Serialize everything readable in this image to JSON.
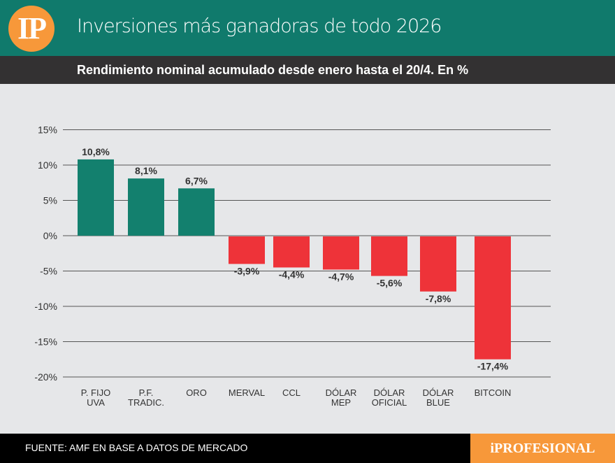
{
  "header": {
    "logo": "IP",
    "title": "Inversiones más ganadoras de todo 2026",
    "subtitle": "Rendimiento nominal acumulado desde enero hasta el 20/4. En %"
  },
  "footer": {
    "source": "FUENTE: AMF EN BASE A DATOS DE MERCADO",
    "brand": "iPROFESIONAL"
  },
  "colors": {
    "positive": "#13806e",
    "negative": "#ee3339"
  },
  "chart_data": {
    "type": "bar",
    "title": "Inversiones más ganadoras de todo 2026",
    "categories": [
      [
        "P. FIJO",
        "UVA"
      ],
      [
        "P.F.",
        "TRADIC."
      ],
      [
        "ORO"
      ],
      [
        "MERVAL"
      ],
      [
        "CCL"
      ],
      [
        "DÓLAR",
        "MEP"
      ],
      [
        "DÓLAR",
        "OFICIAL"
      ],
      [
        "DÓLAR",
        "BLUE"
      ],
      [
        "BITCOIN"
      ]
    ],
    "values": [
      10.8,
      8.1,
      6.7,
      -3.9,
      -4.4,
      -4.7,
      -5.6,
      -7.8,
      -17.4
    ],
    "data_labels": [
      "10,8%",
      "8,1%",
      "6,7%",
      "-3,9%",
      "-4,4%",
      "-4,7%",
      "-5,6%",
      "-7,8%",
      "-17,4%"
    ],
    "ylim": [
      -20,
      15
    ],
    "yticks": [
      15,
      10,
      5,
      0,
      -5,
      -10,
      -15,
      -20
    ],
    "ytick_labels": [
      "15%",
      "10%",
      "5%",
      "0%",
      "-5%",
      "-10%",
      "-15%",
      "-20%"
    ],
    "grid": true
  }
}
